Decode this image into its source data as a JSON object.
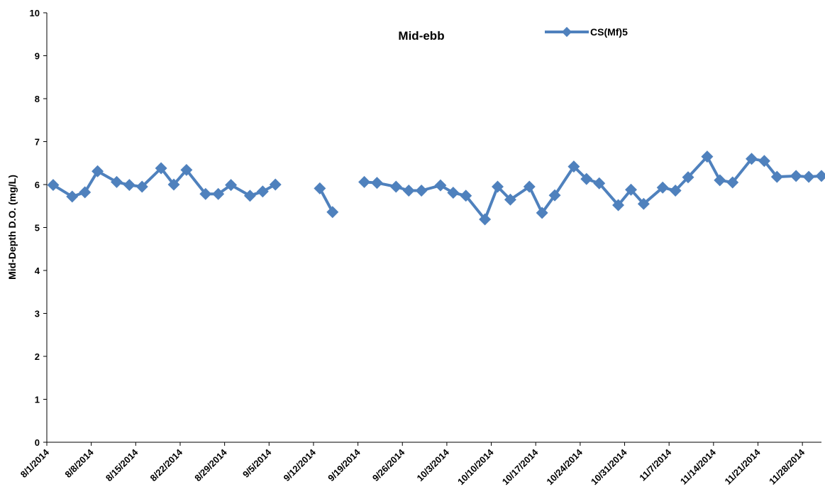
{
  "chart_data": {
    "type": "line",
    "title": "Mid-ebb",
    "ylabel": "Mid-Depth D.O. (mg/L)",
    "xlabel": "",
    "ylim": [
      0,
      10
    ],
    "y_ticks": [
      0,
      1,
      2,
      3,
      4,
      5,
      6,
      7,
      8,
      9,
      10
    ],
    "xlim": [
      "2014-08-01",
      "2014-12-01"
    ],
    "x_tick_labels": [
      "8/1/2014",
      "8/8/2014",
      "8/15/2014",
      "8/22/2014",
      "8/29/2014",
      "9/5/2014",
      "9/12/2014",
      "9/19/2014",
      "9/26/2014",
      "10/3/2014",
      "10/10/2014",
      "10/17/2014",
      "10/24/2014",
      "10/31/2014",
      "11/7/2014",
      "11/14/2014",
      "11/21/2014",
      "11/28/2014"
    ],
    "x_tick_dates": [
      "2014-08-01",
      "2014-08-08",
      "2014-08-15",
      "2014-08-22",
      "2014-08-29",
      "2014-09-05",
      "2014-09-12",
      "2014-09-19",
      "2014-09-26",
      "2014-10-03",
      "2014-10-10",
      "2014-10-17",
      "2014-10-24",
      "2014-10-31",
      "2014-11-07",
      "2014-11-14",
      "2014-11-21",
      "2014-11-28"
    ],
    "grid": false,
    "legend_position": "top-center",
    "series": [
      {
        "name": "CS(Mf)5",
        "color": "#4F81BD",
        "marker": "diamond",
        "points": [
          [
            "2014-08-02",
            5.99
          ],
          [
            "2014-08-05",
            5.72
          ],
          [
            "2014-08-07",
            5.82
          ],
          [
            "2014-08-09",
            6.31
          ],
          [
            "2014-08-12",
            6.06
          ],
          [
            "2014-08-14",
            5.99
          ],
          [
            "2014-08-16",
            5.95
          ],
          [
            "2014-08-19",
            6.38
          ],
          [
            "2014-08-21",
            6.0
          ],
          [
            "2014-08-23",
            6.34
          ],
          [
            "2014-08-26",
            5.78
          ],
          [
            "2014-08-28",
            5.78
          ],
          [
            "2014-08-30",
            5.99
          ],
          [
            "2014-09-02",
            5.74
          ],
          [
            "2014-09-04",
            5.84
          ],
          [
            "2014-09-06",
            6.0
          ],
          null,
          [
            "2014-09-13",
            5.91
          ],
          [
            "2014-09-15",
            5.36
          ],
          null,
          [
            "2014-09-20",
            6.06
          ],
          [
            "2014-09-22",
            6.04
          ],
          [
            "2014-09-25",
            5.95
          ],
          [
            "2014-09-27",
            5.86
          ],
          [
            "2014-09-29",
            5.86
          ],
          [
            "2014-10-02",
            5.98
          ],
          [
            "2014-10-04",
            5.81
          ],
          [
            "2014-10-06",
            5.74
          ],
          [
            "2014-10-09",
            5.19
          ],
          [
            "2014-10-11",
            5.95
          ],
          [
            "2014-10-13",
            5.65
          ],
          [
            "2014-10-16",
            5.95
          ],
          [
            "2014-10-18",
            5.34
          ],
          [
            "2014-10-20",
            5.75
          ],
          [
            "2014-10-23",
            6.42
          ],
          [
            "2014-10-25",
            6.13
          ],
          [
            "2014-10-27",
            6.03
          ],
          [
            "2014-10-30",
            5.52
          ],
          [
            "2014-11-01",
            5.88
          ],
          [
            "2014-11-03",
            5.55
          ],
          [
            "2014-11-06",
            5.93
          ],
          [
            "2014-11-08",
            5.86
          ],
          [
            "2014-11-10",
            6.17
          ],
          [
            "2014-11-13",
            6.65
          ],
          [
            "2014-11-15",
            6.1
          ],
          [
            "2014-11-17",
            6.05
          ],
          [
            "2014-11-20",
            6.6
          ],
          [
            "2014-11-22",
            6.55
          ],
          [
            "2014-11-24",
            6.18
          ],
          [
            "2014-11-27",
            6.2
          ],
          [
            "2014-11-29",
            6.18
          ],
          [
            "2014-12-01",
            6.2
          ]
        ]
      }
    ]
  }
}
